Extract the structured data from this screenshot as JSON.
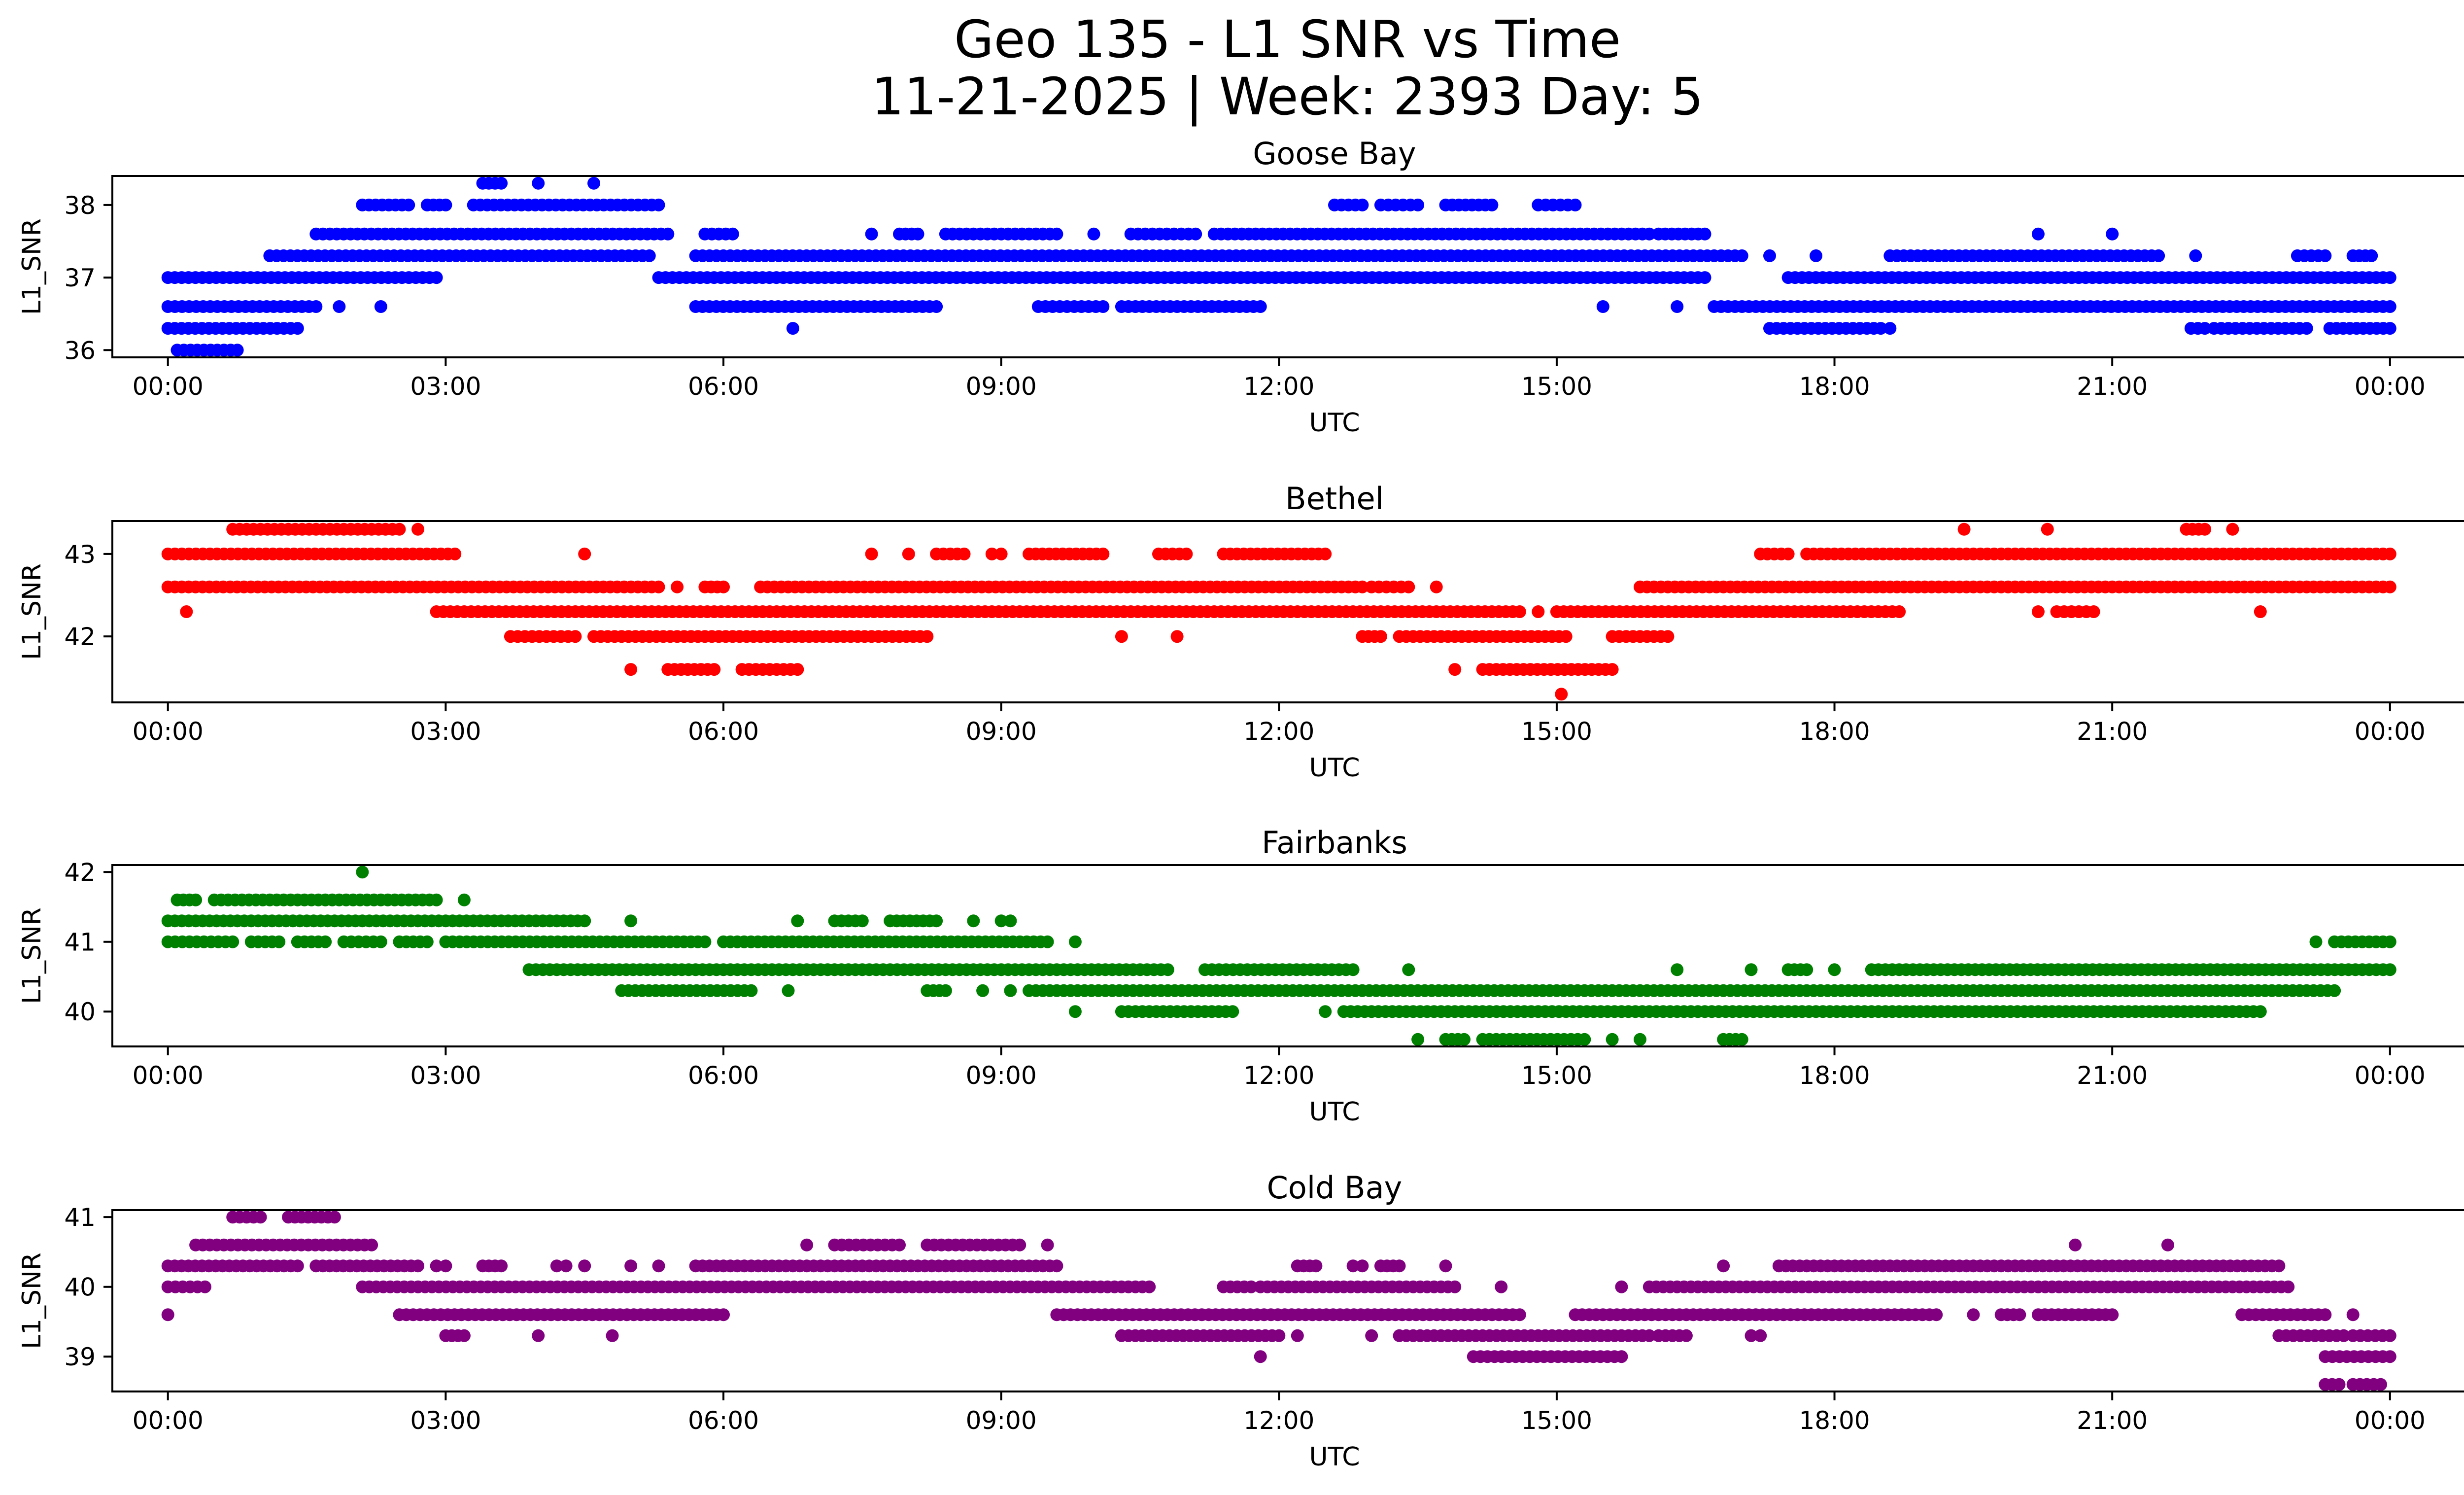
{
  "figure": {
    "title_line1": "Geo 135 - L1 SNR vs Time",
    "title_line2": "11-21-2025 | Week: 2393 Day: 5"
  },
  "chart_data": [
    {
      "type": "scatter",
      "title": "Goose Bay",
      "xlabel": "UTC",
      "ylabel": "L1_SNR",
      "color": "#0000ff",
      "x_unit": "hours_utc",
      "xlim": [
        -0.6,
        25.8
      ],
      "ylim": [
        35.9,
        38.4
      ],
      "xticks": [
        0,
        3,
        6,
        9,
        12,
        15,
        18,
        21,
        24
      ],
      "xticklabels": [
        "00:00",
        "03:00",
        "06:00",
        "09:00",
        "12:00",
        "15:00",
        "18:00",
        "21:00",
        "00:00"
      ],
      "yticks": [
        36,
        37,
        38
      ],
      "yticklabels": [
        "36",
        "37",
        "38"
      ],
      "bands": [
        {
          "y": 36.0,
          "segments": [
            [
              0.1,
              0.75
            ]
          ]
        },
        {
          "y": 36.3,
          "segments": [
            [
              0,
              1.4
            ],
            [
              6.75,
              6.75
            ],
            [
              17.3,
              18.5
            ],
            [
              18.6,
              18.6
            ],
            [
              21.85,
              22.0
            ],
            [
              22.1,
              23.1
            ],
            [
              23.35,
              24.0
            ]
          ]
        },
        {
          "y": 36.6,
          "segments": [
            [
              0,
              1.6
            ],
            [
              1.85,
              1.85
            ],
            [
              2.3,
              2.3
            ],
            [
              5.7,
              8.3
            ],
            [
              9.4,
              10.1
            ],
            [
              10.3,
              11.8
            ],
            [
              15.5,
              15.5
            ],
            [
              16.3,
              16.3
            ],
            [
              16.7,
              24.0
            ]
          ]
        },
        {
          "y": 37.0,
          "segments": [
            [
              0,
              2.9
            ],
            [
              5.3,
              16.6
            ],
            [
              17.5,
              24.0
            ]
          ]
        },
        {
          "y": 37.3,
          "segments": [
            [
              1.1,
              5.2
            ],
            [
              5.7,
              17.0
            ],
            [
              17.3,
              17.3
            ],
            [
              17.8,
              17.8
            ],
            [
              18.6,
              21.5
            ],
            [
              21.9,
              21.9
            ],
            [
              23.0,
              23.3
            ],
            [
              23.6,
              23.8
            ]
          ]
        },
        {
          "y": 37.6,
          "segments": [
            [
              1.6,
              5.4
            ],
            [
              5.8,
              6.1
            ],
            [
              7.6,
              7.6
            ],
            [
              7.9,
              8.1
            ],
            [
              8.4,
              9.6
            ],
            [
              10.0,
              10.0
            ],
            [
              10.4,
              11.1
            ],
            [
              11.3,
              16.0
            ],
            [
              16.1,
              16.6
            ],
            [
              20.2,
              20.2
            ],
            [
              21.0,
              21.0
            ]
          ]
        },
        {
          "y": 38.0,
          "segments": [
            [
              2.1,
              2.6
            ],
            [
              2.8,
              3.0
            ],
            [
              3.3,
              5.3
            ],
            [
              12.6,
              12.9
            ],
            [
              13.1,
              13.5
            ],
            [
              13.8,
              14.3
            ],
            [
              14.8,
              15.2
            ]
          ]
        },
        {
          "y": 38.3,
          "segments": [
            [
              3.4,
              3.6
            ],
            [
              4.0,
              4.0
            ],
            [
              4.6,
              4.6
            ]
          ]
        }
      ]
    },
    {
      "type": "scatter",
      "title": "Bethel",
      "xlabel": "UTC",
      "ylabel": "L1_SNR",
      "color": "#ff0000",
      "x_unit": "hours_utc",
      "xlim": [
        -0.6,
        25.8
      ],
      "ylim": [
        41.2,
        43.4
      ],
      "xticks": [
        0,
        3,
        6,
        9,
        12,
        15,
        18,
        21,
        24
      ],
      "xticklabels": [
        "00:00",
        "03:00",
        "06:00",
        "09:00",
        "12:00",
        "15:00",
        "18:00",
        "21:00",
        "00:00"
      ],
      "yticks": [
        42,
        43
      ],
      "yticklabels": [
        "42",
        "43"
      ],
      "bands": [
        {
          "y": 41.3,
          "segments": [
            [
              15.05,
              15.05
            ]
          ]
        },
        {
          "y": 41.6,
          "segments": [
            [
              5.0,
              5.0
            ],
            [
              5.4,
              5.9
            ],
            [
              6.2,
              6.8
            ],
            [
              13.9,
              13.9
            ],
            [
              14.2,
              15.6
            ]
          ]
        },
        {
          "y": 42.0,
          "segments": [
            [
              3.7,
              4.4
            ],
            [
              4.6,
              8.2
            ],
            [
              10.3,
              10.3
            ],
            [
              10.9,
              10.9
            ],
            [
              12.9,
              13.1
            ],
            [
              13.3,
              15.1
            ],
            [
              15.6,
              16.2
            ]
          ]
        },
        {
          "y": 42.3,
          "segments": [
            [
              0.2,
              0.2
            ],
            [
              2.9,
              14.6
            ],
            [
              14.8,
              14.8
            ],
            [
              15.0,
              18.7
            ],
            [
              20.2,
              20.2
            ],
            [
              20.4,
              20.8
            ],
            [
              22.6,
              22.6
            ]
          ]
        },
        {
          "y": 42.6,
          "segments": [
            [
              0,
              5.3
            ],
            [
              5.5,
              5.5
            ],
            [
              5.8,
              6.0
            ],
            [
              6.4,
              12.9
            ],
            [
              13.0,
              13.4
            ],
            [
              13.7,
              13.7
            ],
            [
              15.9,
              24.0
            ]
          ]
        },
        {
          "y": 43.0,
          "segments": [
            [
              0,
              3.1
            ],
            [
              4.5,
              4.5
            ],
            [
              7.6,
              7.6
            ],
            [
              8.0,
              8.0
            ],
            [
              8.3,
              8.6
            ],
            [
              8.9,
              9.0
            ],
            [
              9.3,
              10.1
            ],
            [
              10.7,
              11.0
            ],
            [
              11.4,
              12.5
            ],
            [
              17.2,
              17.5
            ],
            [
              17.7,
              24.0
            ]
          ]
        },
        {
          "y": 43.3,
          "segments": [
            [
              0.7,
              2.5
            ],
            [
              2.7,
              2.7
            ],
            [
              19.4,
              19.4
            ],
            [
              20.3,
              20.3
            ],
            [
              21.8,
              22.0
            ],
            [
              22.3,
              22.3
            ]
          ]
        }
      ]
    },
    {
      "type": "scatter",
      "title": "Fairbanks",
      "xlabel": "UTC",
      "ylabel": "L1_SNR",
      "color": "#008000",
      "x_unit": "hours_utc",
      "xlim": [
        -0.6,
        25.8
      ],
      "ylim": [
        39.5,
        42.1
      ],
      "xticks": [
        0,
        3,
        6,
        9,
        12,
        15,
        18,
        21,
        24
      ],
      "xticklabels": [
        "00:00",
        "03:00",
        "06:00",
        "09:00",
        "12:00",
        "15:00",
        "18:00",
        "21:00",
        "00:00"
      ],
      "yticks": [
        40,
        41,
        42
      ],
      "yticklabels": [
        "40",
        "41",
        "42"
      ],
      "bands": [
        {
          "y": 39.6,
          "segments": [
            [
              13.5,
              13.5
            ],
            [
              13.8,
              14.0
            ],
            [
              14.2,
              15.3
            ],
            [
              15.6,
              15.6
            ],
            [
              15.9,
              15.9
            ],
            [
              16.8,
              17.0
            ]
          ]
        },
        {
          "y": 40.0,
          "segments": [
            [
              9.8,
              9.8
            ],
            [
              10.3,
              11.5
            ],
            [
              12.5,
              12.5
            ],
            [
              12.7,
              22.6
            ]
          ]
        },
        {
          "y": 40.3,
          "segments": [
            [
              4.9,
              6.3
            ],
            [
              6.7,
              6.7
            ],
            [
              8.2,
              8.4
            ],
            [
              8.8,
              8.8
            ],
            [
              9.1,
              9.1
            ],
            [
              9.3,
              23.4
            ]
          ]
        },
        {
          "y": 40.6,
          "segments": [
            [
              3.9,
              10.8
            ],
            [
              11.2,
              12.8
            ],
            [
              13.4,
              13.4
            ],
            [
              16.3,
              16.3
            ],
            [
              17.1,
              17.1
            ],
            [
              17.5,
              17.7
            ],
            [
              18.0,
              18.0
            ],
            [
              18.4,
              24.0
            ]
          ]
        },
        {
          "y": 41.0,
          "segments": [
            [
              0,
              0.7
            ],
            [
              0.9,
              1.2
            ],
            [
              1.4,
              1.7
            ],
            [
              1.9,
              2.3
            ],
            [
              2.5,
              2.8
            ],
            [
              3.0,
              5.8
            ],
            [
              6.0,
              9.5
            ],
            [
              9.8,
              9.8
            ],
            [
              23.2,
              23.2
            ],
            [
              23.4,
              24.0
            ]
          ]
        },
        {
          "y": 41.3,
          "segments": [
            [
              0,
              4.5
            ],
            [
              5.0,
              5.0
            ],
            [
              6.8,
              6.8
            ],
            [
              7.2,
              7.5
            ],
            [
              7.8,
              8.3
            ],
            [
              8.7,
              8.7
            ],
            [
              9.0,
              9.1
            ]
          ]
        },
        {
          "y": 41.6,
          "segments": [
            [
              0.1,
              0.3
            ],
            [
              0.5,
              2.9
            ],
            [
              3.2,
              3.2
            ]
          ]
        },
        {
          "y": 42.0,
          "segments": [
            [
              2.1,
              2.1
            ]
          ]
        }
      ]
    },
    {
      "type": "scatter",
      "title": "Cold Bay",
      "xlabel": "UTC",
      "ylabel": "L1_SNR",
      "color": "#800080",
      "x_unit": "hours_utc",
      "xlim": [
        -0.6,
        25.8
      ],
      "ylim": [
        38.5,
        41.1
      ],
      "xticks": [
        0,
        3,
        6,
        9,
        12,
        15,
        18,
        21,
        24
      ],
      "xticklabels": [
        "00:00",
        "03:00",
        "06:00",
        "09:00",
        "12:00",
        "15:00",
        "18:00",
        "21:00",
        "00:00"
      ],
      "yticks": [
        39,
        40,
        41
      ],
      "yticklabels": [
        "39",
        "40",
        "41"
      ],
      "bands": [
        {
          "y": 38.6,
          "segments": [
            [
              23.3,
              23.45
            ],
            [
              23.6,
              23.9
            ]
          ]
        },
        {
          "y": 39.0,
          "segments": [
            [
              11.8,
              11.8
            ],
            [
              14.1,
              15.7
            ],
            [
              23.3,
              24.0
            ]
          ]
        },
        {
          "y": 39.3,
          "segments": [
            [
              3.0,
              3.2
            ],
            [
              4.0,
              4.0
            ],
            [
              4.8,
              4.8
            ],
            [
              10.3,
              12.0
            ],
            [
              12.2,
              12.2
            ],
            [
              13.0,
              13.0
            ],
            [
              13.3,
              16.0
            ],
            [
              16.1,
              16.4
            ],
            [
              17.1,
              17.2
            ],
            [
              22.8,
              23.5
            ],
            [
              23.6,
              24.0
            ]
          ]
        },
        {
          "y": 39.6,
          "segments": [
            [
              0,
              0
            ],
            [
              2.5,
              6.0
            ],
            [
              9.6,
              14.6
            ],
            [
              15.2,
              19.1
            ],
            [
              19.5,
              19.5
            ],
            [
              19.8,
              20.0
            ],
            [
              20.2,
              21.0
            ],
            [
              22.4,
              23.3
            ],
            [
              23.6,
              23.6
            ]
          ]
        },
        {
          "y": 40.0,
          "segments": [
            [
              0,
              0.4
            ],
            [
              2.1,
              10.6
            ],
            [
              11.4,
              11.7
            ],
            [
              11.8,
              13.9
            ],
            [
              14.4,
              14.4
            ],
            [
              15.7,
              15.7
            ],
            [
              16.0,
              22.9
            ]
          ]
        },
        {
          "y": 40.3,
          "segments": [
            [
              0,
              1.4
            ],
            [
              1.6,
              2.7
            ],
            [
              2.9,
              3.0
            ],
            [
              3.4,
              3.6
            ],
            [
              4.2,
              4.3
            ],
            [
              4.5,
              4.5
            ],
            [
              5.0,
              5.0
            ],
            [
              5.3,
              5.3
            ],
            [
              5.7,
              9.6
            ],
            [
              12.2,
              12.4
            ],
            [
              12.8,
              12.9
            ],
            [
              13.1,
              13.3
            ],
            [
              13.8,
              13.8
            ],
            [
              16.8,
              16.8
            ],
            [
              17.4,
              22.8
            ]
          ]
        },
        {
          "y": 40.6,
          "segments": [
            [
              0.3,
              2.2
            ],
            [
              6.9,
              6.9
            ],
            [
              7.2,
              7.9
            ],
            [
              8.2,
              9.2
            ],
            [
              9.5,
              9.5
            ],
            [
              20.6,
              20.6
            ],
            [
              21.6,
              21.6
            ]
          ]
        },
        {
          "y": 41.0,
          "segments": [
            [
              0.7,
              1.0
            ],
            [
              1.3,
              1.8
            ]
          ]
        }
      ]
    }
  ]
}
